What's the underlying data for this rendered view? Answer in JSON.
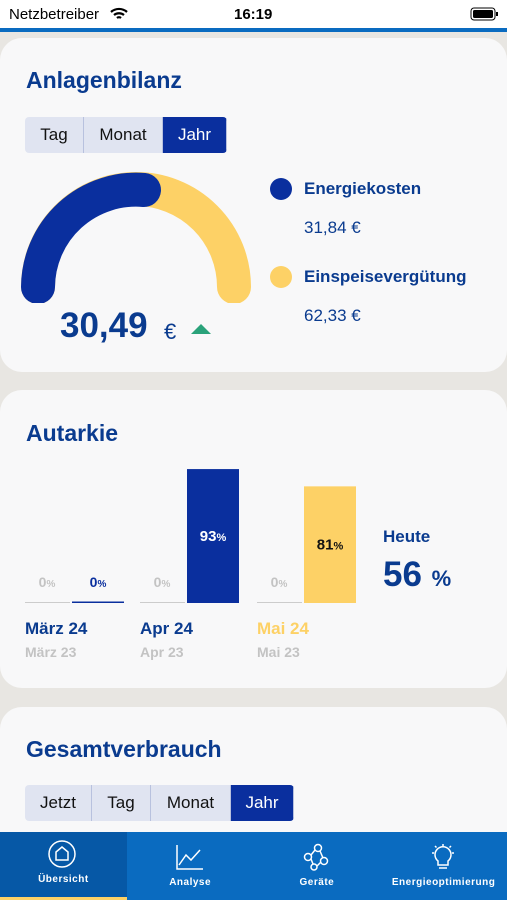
{
  "status_bar": {
    "carrier": "Netzbetreiber",
    "time": "16:19"
  },
  "anlagenbilanz": {
    "title": "Anlagenbilanz",
    "tabs": [
      "Tag",
      "Monat",
      "Jahr"
    ],
    "selected_tab": 2,
    "total": "30,49",
    "currency": "€",
    "legend": [
      {
        "name": "Energiekosten",
        "value": "31,84 €",
        "color": "#0a2f9e"
      },
      {
        "name": "Einspeisevergütung",
        "value": "62,33 €",
        "color": "#fdd166"
      }
    ]
  },
  "autarkie": {
    "title": "Autarkie",
    "unit": "%",
    "ylim": [
      0,
      100
    ],
    "groups": [
      {
        "label": "März 24",
        "sublabel": "März 23",
        "previous": 0,
        "current": 0,
        "color": "#0a2f9e"
      },
      {
        "label": "Apr 24",
        "sublabel": "Apr 23",
        "previous": 0,
        "current": 93,
        "color": "#0a2f9e"
      },
      {
        "label": "Mai 24",
        "sublabel": "Mai 23",
        "previous": 0,
        "current": 81,
        "color": "#fdd166"
      }
    ],
    "today_label": "Heute",
    "today_value": 56
  },
  "gesamtverbrauch": {
    "title": "Gesamtverbrauch",
    "tabs": [
      "Jetzt",
      "Tag",
      "Monat",
      "Jahr"
    ],
    "selected_tab": 3
  },
  "tab_bar": {
    "items": [
      "Übersicht",
      "Analyse",
      "Geräte",
      "Energieoptimierung"
    ],
    "selected": 0
  }
}
